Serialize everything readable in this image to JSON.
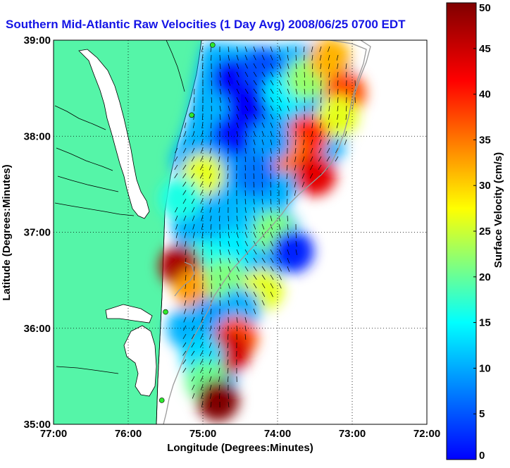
{
  "chart_data": {
    "type": "heatmap",
    "title": "Southern Mid-Atlantic Raw Velocities (1 Day Avg) 2008/06/25 0700 EDT",
    "xlabel": "Longitude (Degrees:Minutes)",
    "ylabel": "Latitude (Degrees:Minutes)",
    "xlim": [
      -77,
      -72
    ],
    "ylim": [
      35,
      39
    ],
    "x_ticks": [
      {
        "value": -77,
        "label": "77:00"
      },
      {
        "value": -76,
        "label": "76:00"
      },
      {
        "value": -75,
        "label": "75:00"
      },
      {
        "value": -74,
        "label": "74:00"
      },
      {
        "value": -73,
        "label": "73:00"
      },
      {
        "value": -72,
        "label": "72:00"
      }
    ],
    "y_ticks": [
      {
        "value": 35,
        "label": "35:00"
      },
      {
        "value": 36,
        "label": "36:00"
      },
      {
        "value": 37,
        "label": "37:00"
      },
      {
        "value": 38,
        "label": "38:00"
      },
      {
        "value": 39,
        "label": "39:00"
      }
    ],
    "grid": "dotted",
    "colorbar": {
      "label": "Surface Velocity (cm/s)",
      "range": [
        0,
        50
      ],
      "ticks": [
        0,
        5,
        10,
        15,
        20,
        25,
        30,
        35,
        40,
        45,
        50
      ],
      "colormap": "jet",
      "colors": [
        "#0000ff",
        "#00ffff",
        "#ffff00",
        "#ff0000",
        "#800000"
      ]
    },
    "land_color": "#55f5a8",
    "stations": [
      {
        "lon": -74.87,
        "lat": 38.95
      },
      {
        "lon": -75.15,
        "lat": 38.22
      },
      {
        "lon": -75.5,
        "lat": 36.17
      },
      {
        "lon": -75.55,
        "lat": 35.25
      }
    ],
    "speed_field": [
      {
        "lon": -74.6,
        "lat": 38.6,
        "speed": 6
      },
      {
        "lon": -74.4,
        "lat": 38.3,
        "speed": 6
      },
      {
        "lon": -74.6,
        "lat": 38.0,
        "speed": 7
      },
      {
        "lon": -74.2,
        "lat": 38.7,
        "speed": 10
      },
      {
        "lon": -73.9,
        "lat": 38.45,
        "speed": 18
      },
      {
        "lon": -73.6,
        "lat": 38.6,
        "speed": 26
      },
      {
        "lon": -73.3,
        "lat": 38.8,
        "speed": 35
      },
      {
        "lon": -73.1,
        "lat": 38.45,
        "speed": 40
      },
      {
        "lon": -73.2,
        "lat": 38.2,
        "speed": 30
      },
      {
        "lon": -73.6,
        "lat": 38.0,
        "speed": 42
      },
      {
        "lon": -73.9,
        "lat": 37.85,
        "speed": 38
      },
      {
        "lon": -73.5,
        "lat": 37.6,
        "speed": 45
      },
      {
        "lon": -74.1,
        "lat": 37.95,
        "speed": 14
      },
      {
        "lon": -74.3,
        "lat": 37.6,
        "speed": 12
      },
      {
        "lon": -74.9,
        "lat": 37.7,
        "speed": 14
      },
      {
        "lon": -75.0,
        "lat": 37.6,
        "speed": 30
      },
      {
        "lon": -75.3,
        "lat": 37.35,
        "speed": 20
      },
      {
        "lon": -74.3,
        "lat": 37.1,
        "speed": 16
      },
      {
        "lon": -74.05,
        "lat": 37.0,
        "speed": 25
      },
      {
        "lon": -73.8,
        "lat": 36.8,
        "speed": 8
      },
      {
        "lon": -74.6,
        "lat": 36.8,
        "speed": 18
      },
      {
        "lon": -75.0,
        "lat": 36.7,
        "speed": 20
      },
      {
        "lon": -75.3,
        "lat": 36.65,
        "speed": 48
      },
      {
        "lon": -75.1,
        "lat": 36.4,
        "speed": 36
      },
      {
        "lon": -74.7,
        "lat": 36.5,
        "speed": 25
      },
      {
        "lon": -74.2,
        "lat": 36.4,
        "speed": 30
      },
      {
        "lon": -74.5,
        "lat": 36.2,
        "speed": 15
      },
      {
        "lon": -74.9,
        "lat": 36.1,
        "speed": 14
      },
      {
        "lon": -75.2,
        "lat": 36.0,
        "speed": 15
      },
      {
        "lon": -74.55,
        "lat": 35.9,
        "speed": 40
      },
      {
        "lon": -74.65,
        "lat": 35.75,
        "speed": 46
      },
      {
        "lon": -75.0,
        "lat": 35.7,
        "speed": 17
      },
      {
        "lon": -74.95,
        "lat": 35.45,
        "speed": 24
      },
      {
        "lon": -74.8,
        "lat": 35.25,
        "speed": 50
      }
    ]
  }
}
